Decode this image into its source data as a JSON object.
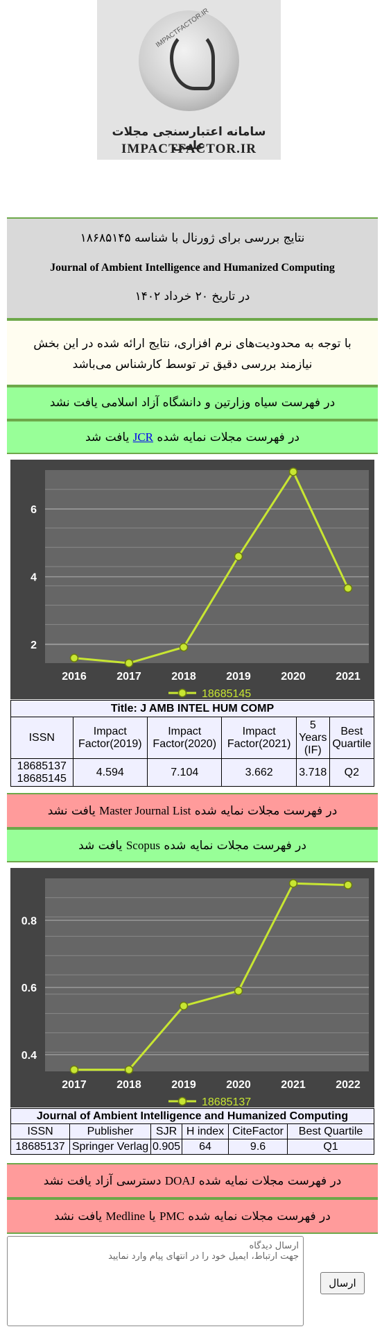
{
  "logo": {
    "arc_text": "IMPACTFACTOR.IR",
    "persian_text": "سامانه اعتبارسنجی مجلات علمی",
    "english_text": "IMPACTFACTOR.IR"
  },
  "header": {
    "line1": "نتایج بررسی برای ژورنال با شناسه ۱۸۶۸۵۱۴۵",
    "journal": "Journal of Ambient Intelligence and Humanized Computing",
    "date": "در تاریخ ۲۰ خرداد ۱۴۰۲"
  },
  "notice": "با توجه به محدودیت‌های نرم افزاری، نتایج ارائه شده در این بخش نیازمند بررسی دقیق تر توسط کارشناس می‌باشد",
  "status": {
    "blacklist": "در فهرست سیاه وزارتین و دانشگاه آزاد اسلامی یافت نشد",
    "jcr_prefix": "در فهرست مجلات نمایه شده",
    "jcr_link": "JCR",
    "jcr_suffix": "یافت شد",
    "mjl_prefix": "در فهرست مجلات نمایه شده",
    "mjl_name": "Master Journal List",
    "mjl_suffix": "یافت نشد",
    "scopus_prefix": "در فهرست مجلات نمایه شده",
    "scopus_name": "Scopus",
    "scopus_suffix": "یافت شد",
    "doaj_prefix": "در فهرست مجلات نمایه شده",
    "doaj_name": "DOAJ",
    "doaj_suffix": "دسترسی آزاد یافت نشد",
    "pmc_prefix": "در فهرست مجلات نمایه شده",
    "pmc_name": "PMC",
    "pmc_mid": "یا",
    "pmc_name2": "Medline",
    "pmc_suffix": "یافت نشد"
  },
  "jcr_table": {
    "title": "Title: J AMB INTEL HUM COMP",
    "headers": [
      "ISSN",
      "Impact Factor(2019)",
      "Impact Factor(2020)",
      "Impact Factor(2021)",
      "5 Years (IF)",
      "Best Quartile"
    ],
    "issn1": "18685137",
    "issn2": "18685145",
    "values": [
      "4.594",
      "7.104",
      "3.662",
      "3.718",
      "Q2"
    ]
  },
  "scopus_table": {
    "title": "Journal of Ambient Intelligence and Humanized Computing",
    "headers": [
      "ISSN",
      "Publisher",
      "SJR",
      "H index",
      "CiteFactor",
      "Best Quartile"
    ],
    "values": [
      "18685137",
      "Springer Verlag",
      "0.905",
      "64",
      "9.6",
      "Q1"
    ]
  },
  "comment": {
    "placeholder_line1": "ارسال دیدگاه",
    "placeholder_line2": "جهت ارتباط، ایمیل خود را در انتهای پیام وارد نمایید",
    "send_label": "ارسال"
  },
  "colors": {
    "line": "#c8e632",
    "chart_bg": "#444444",
    "plot_bg": "#666666",
    "legend_text": "#c8e632"
  },
  "chart_data": [
    {
      "type": "line",
      "categories": [
        "2016",
        "2017",
        "2018",
        "2019",
        "2020",
        "2021"
      ],
      "series": [
        {
          "name": "18685145",
          "values": [
            1.6,
            1.45,
            1.92,
            4.6,
            7.1,
            3.66
          ]
        }
      ],
      "ylim": [
        1.45,
        7.15
      ],
      "yticks": [
        "2",
        "4",
        "6"
      ],
      "ytick_values": [
        2,
        4,
        6
      ],
      "grid": true,
      "legend": "bottom"
    },
    {
      "type": "line",
      "categories": [
        "2017",
        "2018",
        "2019",
        "2020",
        "2021",
        "2022"
      ],
      "series": [
        {
          "name": "18685137",
          "values": [
            0.355,
            0.355,
            0.545,
            0.59,
            0.91,
            0.905
          ]
        }
      ],
      "ylim": [
        0.35,
        0.925
      ],
      "yticks": [
        "0.4",
        "0.6",
        "0.8"
      ],
      "ytick_values": [
        0.4,
        0.6,
        0.8
      ],
      "grid": true,
      "legend": "bottom"
    }
  ]
}
